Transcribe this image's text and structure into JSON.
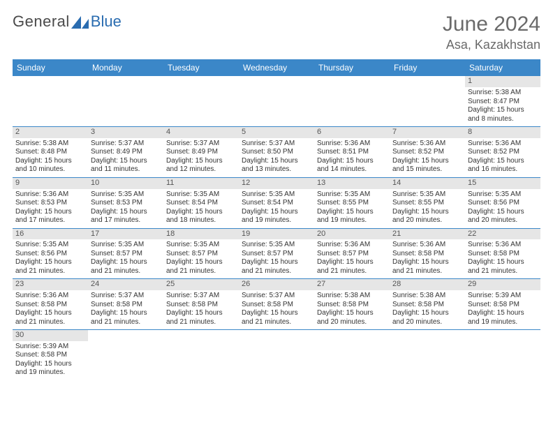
{
  "logo": {
    "text1": "General",
    "text2": "Blue"
  },
  "title": {
    "month": "June 2024",
    "location": "Asa, Kazakhstan"
  },
  "colors": {
    "header_bg": "#3b87c8",
    "header_text": "#ffffff",
    "daynum_bg": "#e6e6e6",
    "border": "#3b87c8",
    "logo_blue": "#2a6cb0",
    "title_color": "#6a6a6a"
  },
  "day_headers": [
    "Sunday",
    "Monday",
    "Tuesday",
    "Wednesday",
    "Thursday",
    "Friday",
    "Saturday"
  ],
  "weeks": [
    [
      null,
      null,
      null,
      null,
      null,
      null,
      {
        "n": "1",
        "sr": "Sunrise: 5:38 AM",
        "ss": "Sunset: 8:47 PM",
        "d1": "Daylight: 15 hours",
        "d2": "and 8 minutes."
      }
    ],
    [
      {
        "n": "2",
        "sr": "Sunrise: 5:38 AM",
        "ss": "Sunset: 8:48 PM",
        "d1": "Daylight: 15 hours",
        "d2": "and 10 minutes."
      },
      {
        "n": "3",
        "sr": "Sunrise: 5:37 AM",
        "ss": "Sunset: 8:49 PM",
        "d1": "Daylight: 15 hours",
        "d2": "and 11 minutes."
      },
      {
        "n": "4",
        "sr": "Sunrise: 5:37 AM",
        "ss": "Sunset: 8:49 PM",
        "d1": "Daylight: 15 hours",
        "d2": "and 12 minutes."
      },
      {
        "n": "5",
        "sr": "Sunrise: 5:37 AM",
        "ss": "Sunset: 8:50 PM",
        "d1": "Daylight: 15 hours",
        "d2": "and 13 minutes."
      },
      {
        "n": "6",
        "sr": "Sunrise: 5:36 AM",
        "ss": "Sunset: 8:51 PM",
        "d1": "Daylight: 15 hours",
        "d2": "and 14 minutes."
      },
      {
        "n": "7",
        "sr": "Sunrise: 5:36 AM",
        "ss": "Sunset: 8:52 PM",
        "d1": "Daylight: 15 hours",
        "d2": "and 15 minutes."
      },
      {
        "n": "8",
        "sr": "Sunrise: 5:36 AM",
        "ss": "Sunset: 8:52 PM",
        "d1": "Daylight: 15 hours",
        "d2": "and 16 minutes."
      }
    ],
    [
      {
        "n": "9",
        "sr": "Sunrise: 5:36 AM",
        "ss": "Sunset: 8:53 PM",
        "d1": "Daylight: 15 hours",
        "d2": "and 17 minutes."
      },
      {
        "n": "10",
        "sr": "Sunrise: 5:35 AM",
        "ss": "Sunset: 8:53 PM",
        "d1": "Daylight: 15 hours",
        "d2": "and 17 minutes."
      },
      {
        "n": "11",
        "sr": "Sunrise: 5:35 AM",
        "ss": "Sunset: 8:54 PM",
        "d1": "Daylight: 15 hours",
        "d2": "and 18 minutes."
      },
      {
        "n": "12",
        "sr": "Sunrise: 5:35 AM",
        "ss": "Sunset: 8:54 PM",
        "d1": "Daylight: 15 hours",
        "d2": "and 19 minutes."
      },
      {
        "n": "13",
        "sr": "Sunrise: 5:35 AM",
        "ss": "Sunset: 8:55 PM",
        "d1": "Daylight: 15 hours",
        "d2": "and 19 minutes."
      },
      {
        "n": "14",
        "sr": "Sunrise: 5:35 AM",
        "ss": "Sunset: 8:55 PM",
        "d1": "Daylight: 15 hours",
        "d2": "and 20 minutes."
      },
      {
        "n": "15",
        "sr": "Sunrise: 5:35 AM",
        "ss": "Sunset: 8:56 PM",
        "d1": "Daylight: 15 hours",
        "d2": "and 20 minutes."
      }
    ],
    [
      {
        "n": "16",
        "sr": "Sunrise: 5:35 AM",
        "ss": "Sunset: 8:56 PM",
        "d1": "Daylight: 15 hours",
        "d2": "and 21 minutes."
      },
      {
        "n": "17",
        "sr": "Sunrise: 5:35 AM",
        "ss": "Sunset: 8:57 PM",
        "d1": "Daylight: 15 hours",
        "d2": "and 21 minutes."
      },
      {
        "n": "18",
        "sr": "Sunrise: 5:35 AM",
        "ss": "Sunset: 8:57 PM",
        "d1": "Daylight: 15 hours",
        "d2": "and 21 minutes."
      },
      {
        "n": "19",
        "sr": "Sunrise: 5:35 AM",
        "ss": "Sunset: 8:57 PM",
        "d1": "Daylight: 15 hours",
        "d2": "and 21 minutes."
      },
      {
        "n": "20",
        "sr": "Sunrise: 5:36 AM",
        "ss": "Sunset: 8:57 PM",
        "d1": "Daylight: 15 hours",
        "d2": "and 21 minutes."
      },
      {
        "n": "21",
        "sr": "Sunrise: 5:36 AM",
        "ss": "Sunset: 8:58 PM",
        "d1": "Daylight: 15 hours",
        "d2": "and 21 minutes."
      },
      {
        "n": "22",
        "sr": "Sunrise: 5:36 AM",
        "ss": "Sunset: 8:58 PM",
        "d1": "Daylight: 15 hours",
        "d2": "and 21 minutes."
      }
    ],
    [
      {
        "n": "23",
        "sr": "Sunrise: 5:36 AM",
        "ss": "Sunset: 8:58 PM",
        "d1": "Daylight: 15 hours",
        "d2": "and 21 minutes."
      },
      {
        "n": "24",
        "sr": "Sunrise: 5:37 AM",
        "ss": "Sunset: 8:58 PM",
        "d1": "Daylight: 15 hours",
        "d2": "and 21 minutes."
      },
      {
        "n": "25",
        "sr": "Sunrise: 5:37 AM",
        "ss": "Sunset: 8:58 PM",
        "d1": "Daylight: 15 hours",
        "d2": "and 21 minutes."
      },
      {
        "n": "26",
        "sr": "Sunrise: 5:37 AM",
        "ss": "Sunset: 8:58 PM",
        "d1": "Daylight: 15 hours",
        "d2": "and 21 minutes."
      },
      {
        "n": "27",
        "sr": "Sunrise: 5:38 AM",
        "ss": "Sunset: 8:58 PM",
        "d1": "Daylight: 15 hours",
        "d2": "and 20 minutes."
      },
      {
        "n": "28",
        "sr": "Sunrise: 5:38 AM",
        "ss": "Sunset: 8:58 PM",
        "d1": "Daylight: 15 hours",
        "d2": "and 20 minutes."
      },
      {
        "n": "29",
        "sr": "Sunrise: 5:39 AM",
        "ss": "Sunset: 8:58 PM",
        "d1": "Daylight: 15 hours",
        "d2": "and 19 minutes."
      }
    ],
    [
      {
        "n": "30",
        "sr": "Sunrise: 5:39 AM",
        "ss": "Sunset: 8:58 PM",
        "d1": "Daylight: 15 hours",
        "d2": "and 19 minutes."
      },
      null,
      null,
      null,
      null,
      null,
      null
    ]
  ]
}
